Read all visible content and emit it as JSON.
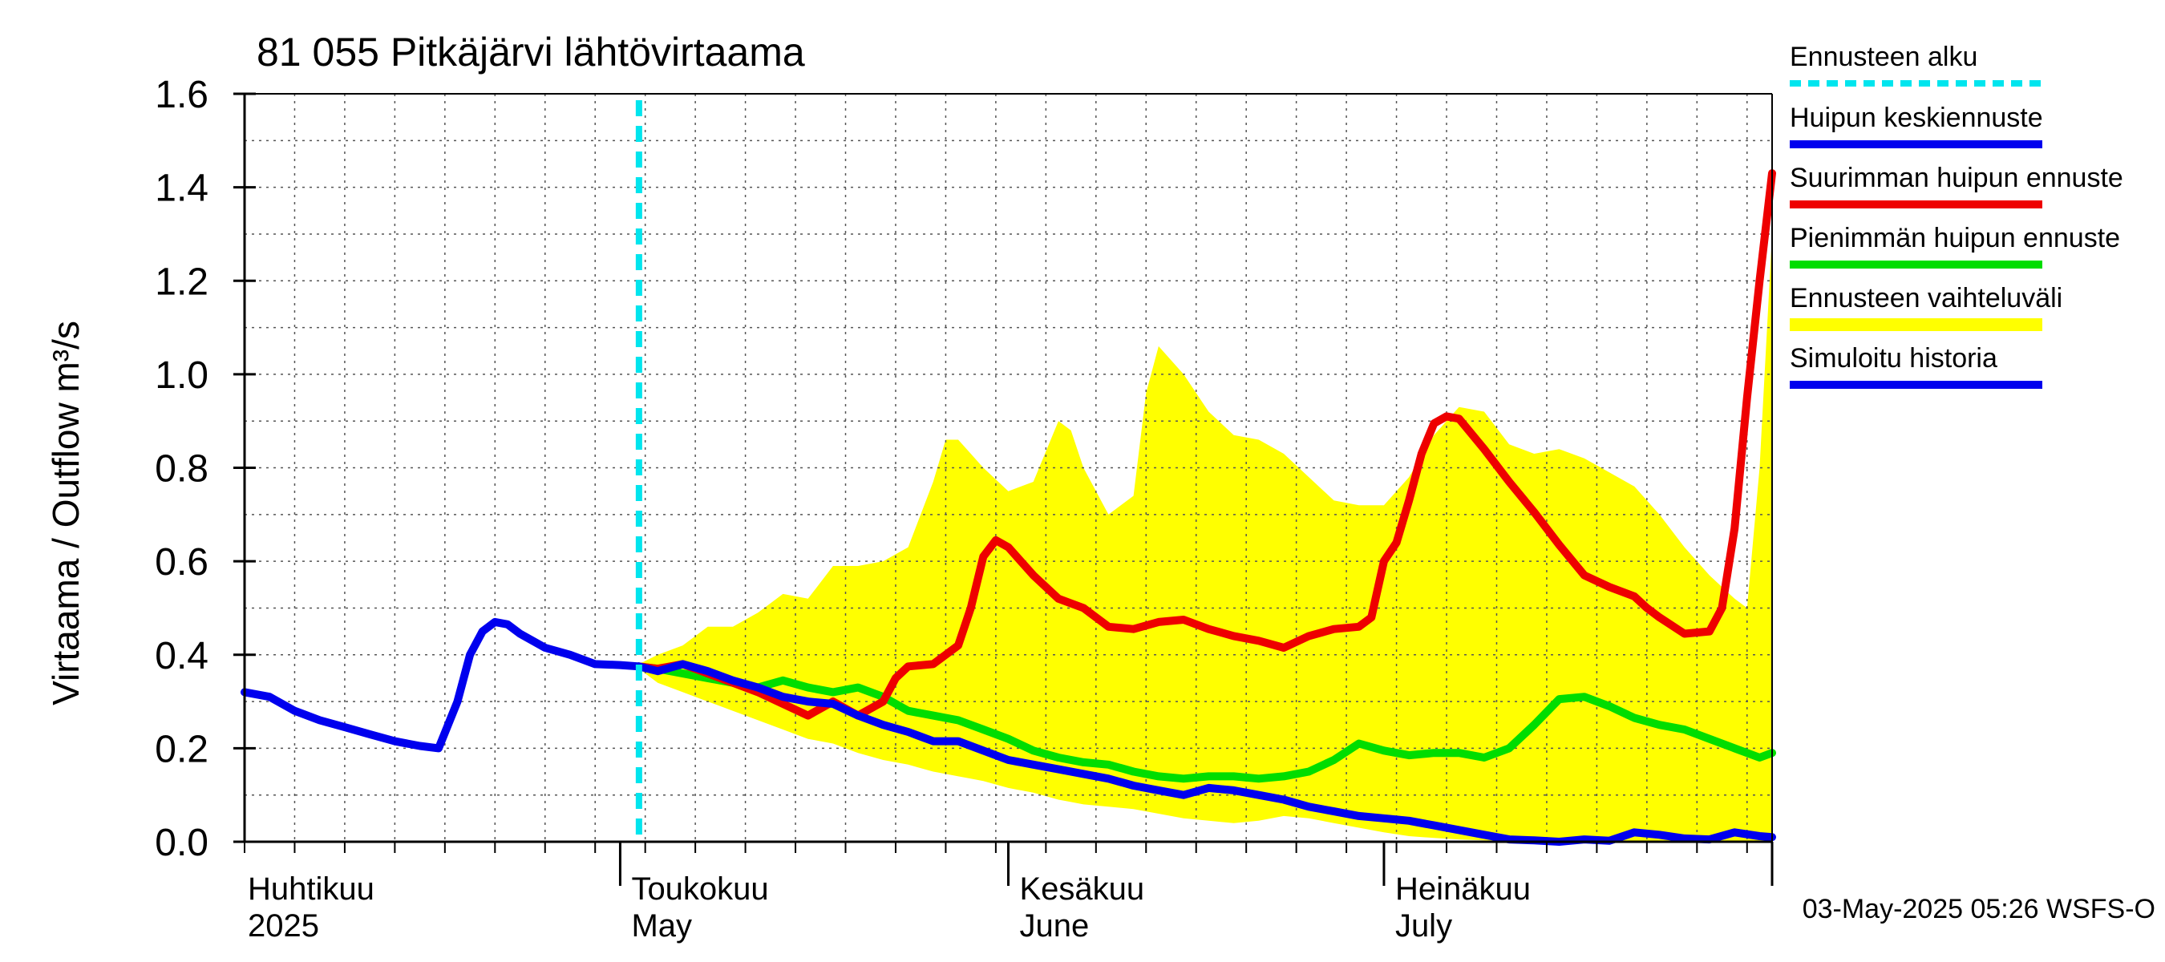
{
  "chart_data": {
    "type": "line",
    "title": "81 055 Pitkäjärvi lähtövirtaama",
    "ylabel": "Virtaama / Outflow    m³/s",
    "xlabel": "",
    "ylim": [
      0,
      1.6
    ],
    "yticks": [
      "0.0",
      "0.2",
      "0.4",
      "0.6",
      "0.8",
      "1.0",
      "1.2",
      "1.4",
      "1.6"
    ],
    "x_domain_days": [
      0,
      122
    ],
    "months": [
      {
        "fi": "Huhtikuu",
        "en": "2025",
        "day": 0
      },
      {
        "fi": "Toukokuu",
        "en": "May",
        "day": 30
      },
      {
        "fi": "Kesäkuu",
        "en": "June",
        "day": 61
      },
      {
        "fi": "Heinäkuu",
        "en": "July",
        "day": 91
      }
    ],
    "forecast_start_day": 31.5,
    "timestamp": "03-May-2025 05:26 WSFS-O",
    "legend": [
      {
        "label": "Ennusteen alku",
        "color": "#00e5ee",
        "style": "dashed"
      },
      {
        "label": "Huipun keskiennuste",
        "color": "#0000ee",
        "style": "solid"
      },
      {
        "label": "Suurimman huipun ennuste",
        "color": "#ee0000",
        "style": "solid"
      },
      {
        "label": "Pienimmän huipun ennuste",
        "color": "#00dd00",
        "style": "solid"
      },
      {
        "label": "Ennusteen vaihteluväli",
        "color": "#ffff00",
        "style": "band"
      },
      {
        "label": "Simuloitu historia",
        "color": "#0000ee",
        "style": "solid"
      }
    ],
    "series": [
      {
        "name": "Simuloitu historia",
        "color": "#0000ee",
        "x": [
          0,
          2,
          4,
          6,
          8,
          10,
          12,
          14,
          15.5,
          17,
          18,
          19,
          20,
          21,
          22,
          24,
          26,
          28,
          30,
          31.5
        ],
        "y": [
          0.32,
          0.31,
          0.28,
          0.26,
          0.245,
          0.23,
          0.215,
          0.205,
          0.2,
          0.3,
          0.4,
          0.45,
          0.47,
          0.465,
          0.445,
          0.415,
          0.4,
          0.38,
          0.378,
          0.375
        ]
      },
      {
        "name": "Huipun keskiennuste",
        "color": "#0000ee",
        "x": [
          31.5,
          33,
          35,
          37,
          39,
          41,
          43,
          45,
          47,
          49,
          51,
          53,
          55,
          57,
          59,
          61,
          63,
          65,
          67,
          69,
          71,
          73,
          75,
          77,
          79,
          81,
          83,
          85,
          87,
          89,
          91,
          93,
          95,
          97,
          99,
          101,
          103,
          105,
          107,
          109,
          111,
          113,
          115,
          117,
          119,
          121,
          122
        ],
        "y": [
          0.375,
          0.365,
          0.38,
          0.365,
          0.345,
          0.33,
          0.31,
          0.3,
          0.295,
          0.27,
          0.25,
          0.235,
          0.215,
          0.215,
          0.195,
          0.175,
          0.165,
          0.155,
          0.145,
          0.135,
          0.12,
          0.11,
          0.1,
          0.115,
          0.11,
          0.1,
          0.09,
          0.075,
          0.065,
          0.055,
          0.05,
          0.045,
          0.035,
          0.025,
          0.015,
          0.005,
          0.003,
          0.0,
          0.005,
          0.002,
          0.02,
          0.015,
          0.007,
          0.005,
          0.02,
          0.012,
          0.01
        ]
      },
      {
        "name": "Suurimman huipun ennuste",
        "color": "#ee0000",
        "x": [
          31.5,
          33,
          35,
          37,
          39,
          41,
          43,
          45,
          47,
          49,
          51,
          52,
          53,
          55,
          57,
          58,
          59,
          60,
          61,
          63,
          65,
          67,
          69,
          71,
          73,
          75,
          77,
          79,
          81,
          83,
          85,
          87,
          89,
          90,
          91,
          92,
          93,
          94,
          95,
          96,
          97,
          99,
          101,
          103,
          105,
          107,
          109,
          111,
          112,
          113,
          115,
          117,
          118,
          119,
          120,
          121,
          122
        ],
        "y": [
          0.375,
          0.37,
          0.38,
          0.36,
          0.34,
          0.32,
          0.295,
          0.27,
          0.3,
          0.27,
          0.3,
          0.35,
          0.375,
          0.38,
          0.42,
          0.5,
          0.61,
          0.645,
          0.63,
          0.57,
          0.52,
          0.5,
          0.46,
          0.455,
          0.47,
          0.475,
          0.455,
          0.44,
          0.43,
          0.415,
          0.44,
          0.455,
          0.46,
          0.48,
          0.6,
          0.64,
          0.73,
          0.83,
          0.895,
          0.91,
          0.905,
          0.84,
          0.77,
          0.705,
          0.635,
          0.57,
          0.545,
          0.525,
          0.5,
          0.48,
          0.445,
          0.45,
          0.5,
          0.67,
          0.95,
          1.2,
          1.43
        ]
      },
      {
        "name": "Pienimmän huipun ennuste",
        "color": "#00dd00",
        "x": [
          31.5,
          33,
          35,
          37,
          39,
          41,
          43,
          45,
          47,
          49,
          51,
          53,
          55,
          57,
          59,
          61,
          63,
          65,
          67,
          69,
          71,
          73,
          75,
          77,
          79,
          81,
          83,
          85,
          87,
          89,
          91,
          93,
          95,
          97,
          99,
          101,
          103,
          105,
          107,
          109,
          111,
          113,
          115,
          117,
          119,
          121,
          122
        ],
        "y": [
          0.375,
          0.37,
          0.36,
          0.35,
          0.34,
          0.33,
          0.345,
          0.33,
          0.32,
          0.33,
          0.31,
          0.28,
          0.27,
          0.26,
          0.24,
          0.22,
          0.195,
          0.18,
          0.17,
          0.165,
          0.15,
          0.14,
          0.135,
          0.14,
          0.14,
          0.135,
          0.14,
          0.15,
          0.175,
          0.21,
          0.195,
          0.185,
          0.19,
          0.19,
          0.18,
          0.2,
          0.25,
          0.305,
          0.31,
          0.29,
          0.265,
          0.25,
          0.24,
          0.22,
          0.2,
          0.18,
          0.19
        ]
      },
      {
        "name": "Ennusteen vaihteluväli",
        "color": "#ffff00",
        "x": [
          31.5,
          33,
          35,
          37,
          39,
          41,
          43,
          45,
          47,
          49,
          51,
          53,
          55,
          56,
          57,
          58,
          59,
          61,
          63,
          65,
          66,
          67,
          69,
          71,
          72,
          73,
          75,
          77,
          79,
          81,
          83,
          85,
          87,
          89,
          91,
          93,
          95,
          97,
          99,
          101,
          103,
          105,
          107,
          109,
          111,
          113,
          115,
          117,
          119,
          120,
          121,
          122
        ],
        "upper": [
          0.38,
          0.4,
          0.42,
          0.46,
          0.46,
          0.49,
          0.53,
          0.52,
          0.59,
          0.59,
          0.6,
          0.63,
          0.77,
          0.86,
          0.86,
          0.83,
          0.8,
          0.75,
          0.77,
          0.9,
          0.88,
          0.8,
          0.7,
          0.74,
          0.96,
          1.06,
          1.0,
          0.92,
          0.87,
          0.86,
          0.83,
          0.78,
          0.73,
          0.72,
          0.72,
          0.78,
          0.87,
          0.93,
          0.92,
          0.85,
          0.83,
          0.84,
          0.82,
          0.79,
          0.76,
          0.7,
          0.63,
          0.57,
          0.52,
          0.5,
          0.8,
          1.3
        ],
        "lower": [
          0.37,
          0.34,
          0.32,
          0.3,
          0.28,
          0.26,
          0.24,
          0.22,
          0.21,
          0.19,
          0.175,
          0.165,
          0.15,
          0.145,
          0.14,
          0.135,
          0.13,
          0.115,
          0.105,
          0.09,
          0.085,
          0.08,
          0.075,
          0.07,
          0.065,
          0.06,
          0.05,
          0.045,
          0.04,
          0.045,
          0.055,
          0.05,
          0.04,
          0.03,
          0.02,
          0.012,
          0.008,
          0.005,
          0.003,
          0.002,
          0.002,
          0.002,
          0.002,
          0.002,
          0.002,
          0.002,
          0.002,
          0.002,
          0.002,
          0.002,
          0.002,
          0.002
        ]
      }
    ]
  }
}
